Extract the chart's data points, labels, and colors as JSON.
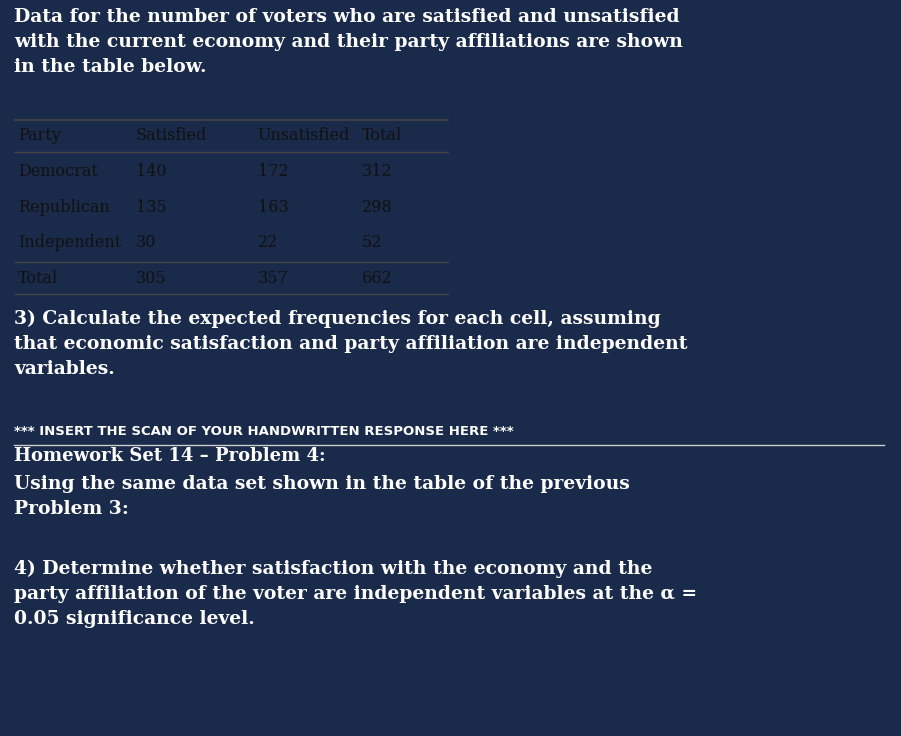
{
  "bg_color": "#1a2a4a",
  "text_color": "#ffffff",
  "table_bg": "#b0b8c8",
  "table_header_line_color": "#333333",
  "intro_text": "Data for the number of voters who are satisfied and unsatisfied\nwith the current economy and their party affiliations are shown\nin the table below.",
  "table_headers": [
    "Party",
    "Satisfied",
    "Unsatisfied",
    "Total"
  ],
  "table_rows": [
    [
      "Democrat",
      "140",
      "172",
      "312"
    ],
    [
      "Republican",
      "135",
      "163",
      "298"
    ],
    [
      "Independent",
      "30",
      "22",
      "52"
    ],
    [
      "Total",
      "305",
      "357",
      "662"
    ]
  ],
  "problem3_text": "3) Calculate the expected frequencies for each cell, assuming\nthat economic satisfaction and party affiliation are independent\nvariables.",
  "insert_text": "*** INSERT THE SCAN OF YOUR HANDWRITTEN RESPONSE HERE ***",
  "hw_label": "Homework Set 14 – Problem 4:",
  "problem4_intro": "Using the same data set shown in the table of the previous\nProblem 3:",
  "problem4_text": "4) Determine whether satisfaction with the economy and the\nparty affiliation of the voter are independent variables at the α =\n0.05 significance level.",
  "figsize": [
    9.01,
    7.36
  ],
  "dpi": 100
}
